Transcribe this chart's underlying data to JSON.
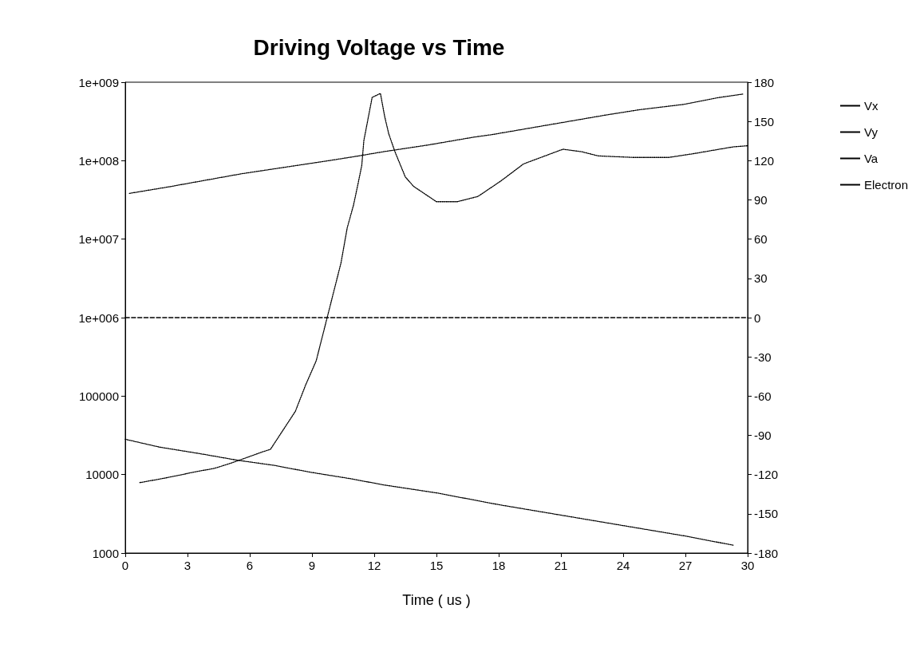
{
  "chart_data": {
    "type": "line",
    "title": "Driving Voltage vs Time",
    "xlabel": "Time ( us )",
    "xlim": [
      0,
      30
    ],
    "xticks": [
      0,
      3,
      6,
      9,
      12,
      15,
      18,
      21,
      24,
      27,
      30
    ],
    "log": "y",
    "ylim": [
      1000,
      1000000000
    ],
    "yticks": [
      1000,
      10000,
      100000,
      {
        "value": 1000000,
        "label": "1e+006"
      },
      {
        "value": 10000000,
        "label": "1e+007"
      },
      {
        "value": 100000000,
        "label": "1e+008"
      },
      {
        "value": 1000000000,
        "label": "1e+009"
      }
    ],
    "y2lim": [
      -180,
      180
    ],
    "y2ticks": [
      -180,
      -150,
      -120,
      -90,
      -60,
      -30,
      0,
      30,
      60,
      90,
      120,
      150,
      180
    ],
    "grid": false,
    "legend": "right",
    "marker": "none",
    "series": [
      {
        "name": "Vx",
        "color": "#000000",
        "axis": "y2",
        "line_style": "dashed",
        "x": [
          0,
          30
        ],
        "values": [
          0,
          0
        ]
      },
      {
        "name": "Vy",
        "color": "#000000",
        "axis": "y2",
        "line_style": "dotted",
        "x": [
          0,
          1.65,
          3.6,
          5.4,
          7.2,
          8.85,
          10.8,
          12.5,
          15,
          18,
          21,
          24,
          27,
          29.3
        ],
        "values": [
          -93,
          -99,
          -104,
          -109,
          -113,
          -118,
          -123,
          -128,
          -134,
          -143,
          -151,
          -159,
          -167,
          -174
        ]
      },
      {
        "name": "Va",
        "color": "#000000",
        "axis": "y2",
        "line_style": "dotted",
        "x": [
          0.2,
          2.1,
          5.6,
          9.8,
          11,
          12.5,
          14.6,
          16.8,
          17.7,
          23.2,
          24.8,
          26.9,
          28.5,
          29.8
        ],
        "values": [
          95,
          100,
          110,
          120,
          123,
          127,
          132,
          138,
          140,
          155,
          159,
          163,
          168,
          171
        ]
      },
      {
        "name": "Electron",
        "color": "#000000",
        "line_style": "dotted",
        "x": [
          0.7,
          1.9,
          3.5,
          4.3,
          5.1,
          6,
          6.5,
          7,
          8.2,
          8.7,
          9.2,
          9.9,
          10.4,
          10.7,
          11,
          11.2,
          11.4,
          11.5,
          11.7,
          11.9,
          12.3,
          12.5,
          12.7,
          13,
          13.5,
          13.9,
          15,
          16,
          17,
          18.1,
          19.2,
          21.1,
          22,
          22.8,
          24.5,
          26.2,
          27.4,
          29.3,
          30
        ],
        "values": [
          7900,
          9000,
          11000,
          12000,
          14000,
          17000,
          19000,
          21000,
          64000,
          140000,
          280000,
          1500000,
          5000000,
          14000000,
          27000000,
          48000000,
          87000000,
          180000000,
          340000000,
          640000000,
          720000000,
          370000000,
          220000000,
          130000000,
          62000000,
          47000000,
          30000000,
          30000000,
          35000000,
          55000000,
          91000000,
          140000000,
          130000000,
          115000000,
          110000000,
          110000000,
          123000000,
          150000000,
          155000000
        ]
      }
    ]
  }
}
